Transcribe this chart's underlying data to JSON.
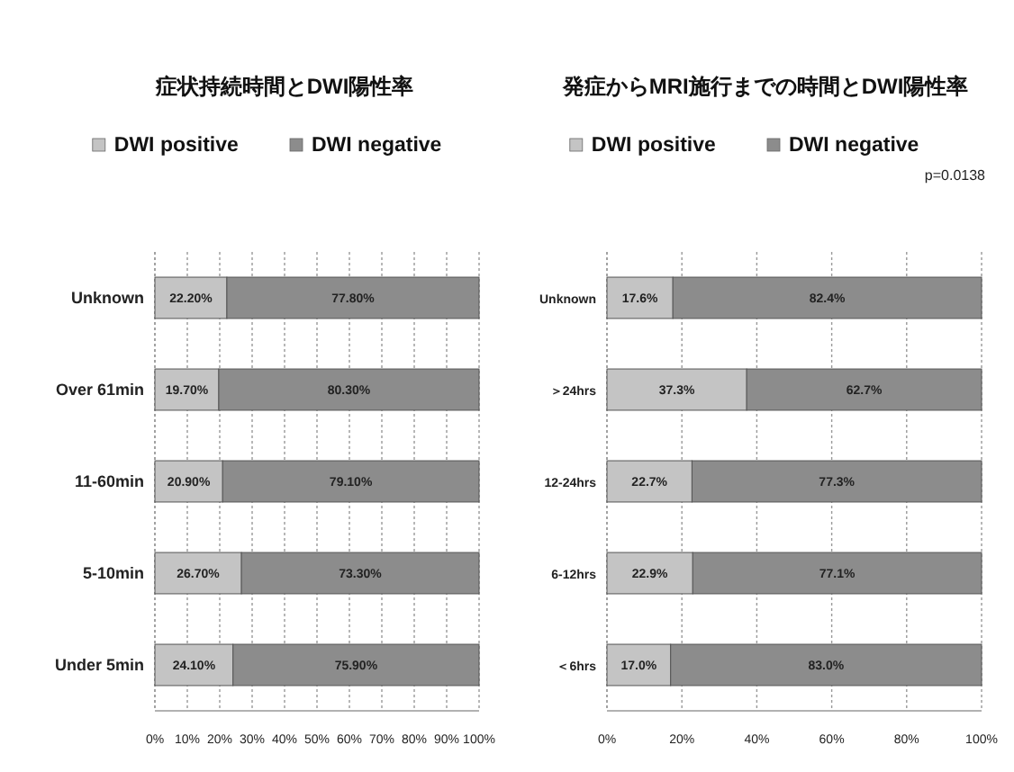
{
  "chart_data": [
    {
      "type": "bar",
      "orientation": "horizontal",
      "stacked": true,
      "title": "症状持続時間とDWI陽性率",
      "categories": [
        "Unknown",
        "Over 61min",
        "11-60min",
        "5-10min",
        "Under 5min"
      ],
      "series": [
        {
          "name": "DWI positive",
          "color": "#c4c4c4",
          "values": [
            22.2,
            19.7,
            20.9,
            26.7,
            24.1
          ],
          "value_labels": [
            "22.20%",
            "19.70%",
            "20.90%",
            "26.70%",
            "24.10%"
          ]
        },
        {
          "name": "DWI negative",
          "color": "#8c8c8c",
          "values": [
            77.8,
            80.3,
            79.1,
            73.3,
            75.9
          ],
          "value_labels": [
            "77.80%",
            "80.30%",
            "79.10%",
            "73.30%",
            "75.90%"
          ]
        }
      ],
      "xlim": [
        0,
        100
      ],
      "xticks": [
        {
          "value": 0,
          "label": "0%"
        },
        {
          "value": 10,
          "label": "10%"
        },
        {
          "value": 20,
          "label": "20%"
        },
        {
          "value": 30,
          "label": "30%"
        },
        {
          "value": 40,
          "label": "40%"
        },
        {
          "value": 50,
          "label": "50%"
        },
        {
          "value": 60,
          "label": "60%"
        },
        {
          "value": 70,
          "label": "70%"
        },
        {
          "value": 80,
          "label": "80%"
        },
        {
          "value": 90,
          "label": "90%"
        },
        {
          "value": 100,
          "label": "100%"
        }
      ],
      "grid": "x",
      "legend": "top"
    },
    {
      "type": "bar",
      "orientation": "horizontal",
      "stacked": true,
      "title": "発症からMRI施行までの時間とDWI陽性率",
      "categories": [
        "Unknown",
        "＞24hrs",
        "12-24hrs",
        "6-12hrs",
        "＜6hrs"
      ],
      "series": [
        {
          "name": "DWI positive",
          "color": "#c4c4c4",
          "values": [
            17.6,
            37.3,
            22.7,
            22.9,
            17.0
          ],
          "value_labels": [
            "17.6%",
            "37.3%",
            "22.7%",
            "22.9%",
            "17.0%"
          ]
        },
        {
          "name": "DWI negative",
          "color": "#8c8c8c",
          "values": [
            82.4,
            62.7,
            77.3,
            77.1,
            83.0
          ],
          "value_labels": [
            "82.4%",
            "62.7%",
            "77.3%",
            "77.1%",
            "83.0%"
          ]
        }
      ],
      "xlim": [
        0,
        100
      ],
      "xticks": [
        {
          "value": 0,
          "label": "0%"
        },
        {
          "value": 20,
          "label": "20%"
        },
        {
          "value": 40,
          "label": "40%"
        },
        {
          "value": 60,
          "label": "60%"
        },
        {
          "value": 80,
          "label": "80%"
        },
        {
          "value": 100,
          "label": "100%"
        }
      ],
      "annotations": [
        "p=0.0138"
      ],
      "grid": "x",
      "legend": "top"
    }
  ]
}
